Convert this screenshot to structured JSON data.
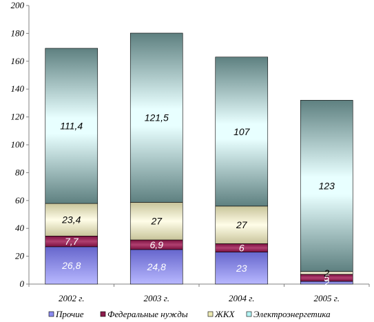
{
  "chart_data": {
    "type": "bar",
    "stacked": true,
    "categories": [
      "2002 г.",
      "2003 г.",
      "2004 г.",
      "2005 г."
    ],
    "ylim": [
      0,
      200
    ],
    "yticks": [
      0,
      20,
      40,
      60,
      80,
      100,
      120,
      140,
      160,
      180,
      200
    ],
    "grid": false,
    "legend_position": "bottom",
    "series": [
      {
        "name": "Прочие",
        "values": [
          26.8,
          24.8,
          23,
          2
        ],
        "labels": [
          "26,8",
          "24,8",
          "23",
          "2"
        ],
        "color": "#8b8bf0"
      },
      {
        "name": "Федеральные  нужды",
        "values": [
          7.7,
          6.9,
          6,
          5
        ],
        "labels": [
          "7,7",
          "6,9",
          "6",
          "5"
        ],
        "color": "#8c1c4c"
      },
      {
        "name": "ЖКХ",
        "values": [
          23.4,
          27,
          27,
          2
        ],
        "labels": [
          "23,4",
          "27",
          "27",
          "2"
        ],
        "color": "#ece9b2"
      },
      {
        "name": "Электроэнергетика",
        "values": [
          111.4,
          121.5,
          107,
          123
        ],
        "labels": [
          "111,4",
          "121,5",
          "107",
          "123"
        ],
        "color": "#b4f4f4"
      }
    ]
  }
}
